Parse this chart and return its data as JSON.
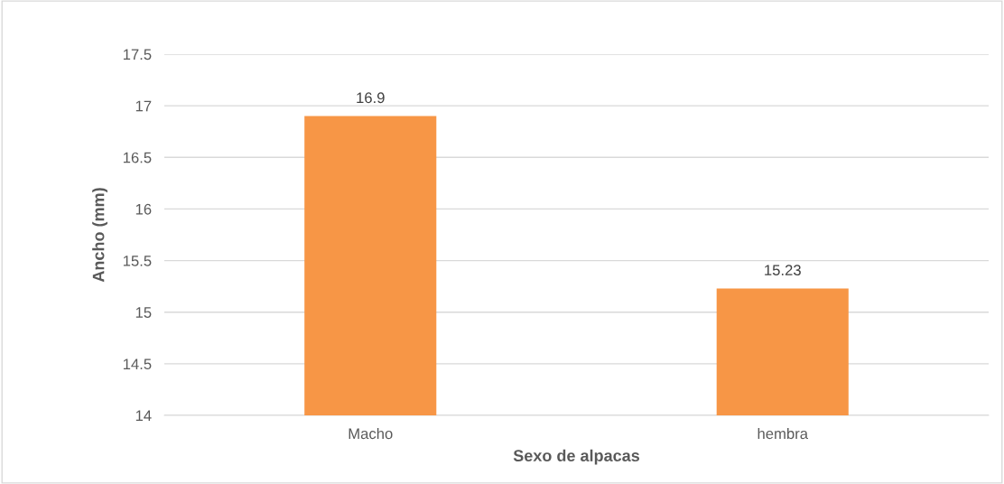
{
  "chart_data": {
    "type": "bar",
    "xlabel": "Sexo de alpacas",
    "ylabel": "Ancho (mm)",
    "categories": [
      "Macho",
      "hembra"
    ],
    "values": [
      16.9,
      15.23
    ],
    "color": "#f79646",
    "ylim": [
      14,
      17.5
    ],
    "yticks": [
      14,
      14.5,
      15,
      15.5,
      16,
      16.5,
      17,
      17.5
    ],
    "grid": "y",
    "data_labels": true
  }
}
